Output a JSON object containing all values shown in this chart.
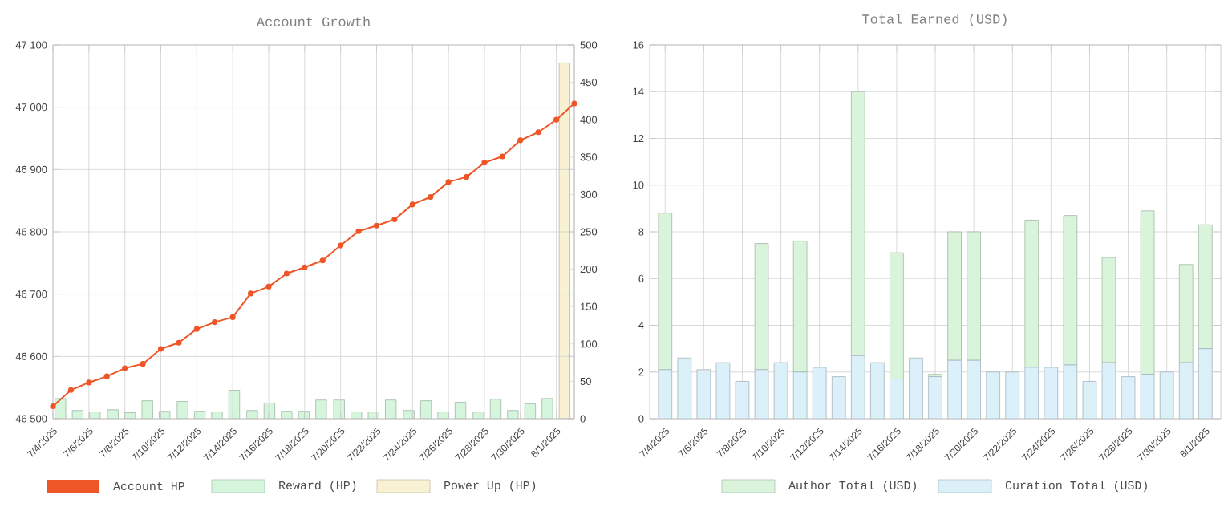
{
  "chart_data": [
    {
      "type": "line",
      "title": "Account Growth",
      "legend": "bottom",
      "grid": true,
      "xlim": [
        "2025-07-04",
        "2025-08-02"
      ],
      "xticks": [
        {
          "value": "2025-07-04",
          "label": "7/4/2025"
        },
        {
          "value": "2025-07-06",
          "label": "7/6/2025"
        },
        {
          "value": "2025-07-08",
          "label": "7/8/2025"
        },
        {
          "value": "2025-07-10",
          "label": "7/10/2025"
        },
        {
          "value": "2025-07-12",
          "label": "7/12/2025"
        },
        {
          "value": "2025-07-14",
          "label": "7/14/2025"
        },
        {
          "value": "2025-07-16",
          "label": "7/16/2025"
        },
        {
          "value": "2025-07-18",
          "label": "7/18/2025"
        },
        {
          "value": "2025-07-20",
          "label": "7/20/2025"
        },
        {
          "value": "2025-07-22",
          "label": "7/22/2025"
        },
        {
          "value": "2025-07-24",
          "label": "7/24/2025"
        },
        {
          "value": "2025-07-26",
          "label": "7/26/2025"
        },
        {
          "value": "2025-07-28",
          "label": "7/28/2025"
        },
        {
          "value": "2025-07-30",
          "label": "7/30/2025"
        },
        {
          "value": "2025-08-01",
          "label": "8/1/2025"
        }
      ],
      "ylim": [
        46500,
        47100
      ],
      "yticks": [
        {
          "value": 46500,
          "label": "46 500"
        },
        {
          "value": 46600,
          "label": "46 600"
        },
        {
          "value": 46700,
          "label": "46 700"
        },
        {
          "value": 46800,
          "label": "46 800"
        },
        {
          "value": 46900,
          "label": "46 900"
        },
        {
          "value": 47000,
          "label": "47 000"
        },
        {
          "value": 47100,
          "label": "47 100"
        }
      ],
      "y2lim": [
        0,
        500
      ],
      "y2ticks": [
        0,
        50,
        100,
        150,
        200,
        250,
        300,
        350,
        400,
        450,
        500
      ],
      "series": [
        {
          "name": "Account HP",
          "type": "line",
          "axis": "y",
          "color": "#ee5527",
          "marker": "circle",
          "x": [
            "2025-07-04",
            "2025-07-05",
            "2025-07-06",
            "2025-07-07",
            "2025-07-08",
            "2025-07-09",
            "2025-07-10",
            "2025-07-11",
            "2025-07-12",
            "2025-07-13",
            "2025-07-14",
            "2025-07-15",
            "2025-07-16",
            "2025-07-17",
            "2025-07-18",
            "2025-07-19",
            "2025-07-20",
            "2025-07-21",
            "2025-07-22",
            "2025-07-23",
            "2025-07-24",
            "2025-07-25",
            "2025-07-26",
            "2025-07-27",
            "2025-07-28",
            "2025-07-29",
            "2025-07-30",
            "2025-07-31",
            "2025-08-01",
            "2025-08-02"
          ],
          "values": [
            46520,
            46546,
            46558,
            46568,
            46581,
            46588,
            46612,
            46622,
            46644,
            46655,
            46663,
            46701,
            46712,
            46733,
            46743,
            46754,
            46778,
            46801,
            46810,
            46820,
            46844,
            46856,
            46880,
            46888,
            46911,
            46921,
            46947,
            46960,
            46980,
            47006
          ]
        },
        {
          "name": "Reward (HP)",
          "type": "bar",
          "axis": "y2",
          "color": "#d5f6dc",
          "x": [
            "2025-07-04T10:00",
            "2025-07-05T09:00",
            "2025-07-06T08:00",
            "2025-07-07T08:00",
            "2025-07-08T07:00",
            "2025-07-09T06:00",
            "2025-07-10T05:00",
            "2025-07-11T05:00",
            "2025-07-12T04:00",
            "2025-07-13T03:00",
            "2025-07-14T02:00",
            "2025-07-15T02:00",
            "2025-07-16T01:00",
            "2025-07-17T00:00",
            "2025-07-17T23:00",
            "2025-07-18T22:00",
            "2025-07-19T22:00",
            "2025-07-20T21:00",
            "2025-07-21T20:00",
            "2025-07-22T19:00",
            "2025-07-23T19:00",
            "2025-07-24T18:00",
            "2025-07-25T17:00",
            "2025-07-26T16:00",
            "2025-07-27T16:00",
            "2025-07-28T15:00",
            "2025-07-29T14:00",
            "2025-07-30T13:00",
            "2025-07-31T12:00"
          ],
          "values": [
            27,
            11,
            9,
            12,
            8,
            24,
            10,
            23,
            10,
            9,
            38,
            11,
            21,
            10,
            10,
            25,
            25,
            9,
            9,
            25,
            11,
            24,
            9,
            22,
            9,
            26,
            11,
            20,
            27
          ]
        },
        {
          "name": "Power Up (HP)",
          "type": "bar",
          "axis": "y2",
          "color": "#f8f2d2",
          "x": [
            "2025-08-01T11:00"
          ],
          "values": [
            476
          ]
        }
      ]
    },
    {
      "type": "bar",
      "title": "Total Earned (USD)",
      "legend": "bottom",
      "grid": true,
      "stacked": true,
      "categories": [
        "7/4/2025",
        null,
        "7/6/2025",
        null,
        "7/8/2025",
        null,
        "7/10/2025",
        null,
        "7/12/2025",
        null,
        "7/14/2025",
        null,
        "7/16/2025",
        null,
        "7/18/2025",
        null,
        "7/20/2025",
        null,
        "7/22/2025",
        null,
        "7/24/2025",
        null,
        "7/26/2025",
        null,
        "7/28/2025",
        null,
        "7/30/2025",
        null,
        "8/1/2025"
      ],
      "ylim": [
        0,
        16
      ],
      "yticks": [
        0,
        2,
        4,
        6,
        8,
        10,
        12,
        14,
        16
      ],
      "series": [
        {
          "name": "Curation Total (USD)",
          "color": "#dcf0fa",
          "values": [
            2.1,
            2.6,
            2.1,
            2.4,
            1.6,
            2.1,
            2.4,
            2.0,
            2.2,
            1.8,
            2.7,
            2.4,
            1.7,
            2.6,
            1.8,
            2.5,
            2.5,
            2.0,
            2.0,
            2.2,
            2.2,
            2.3,
            1.6,
            2.4,
            1.8,
            1.9,
            2.0,
            2.4,
            3.0
          ]
        },
        {
          "name": "Author Total (USD)",
          "color": "#daf4dc",
          "values": [
            6.7,
            0,
            0,
            0,
            0,
            5.4,
            0,
            5.6,
            0,
            0,
            11.3,
            0,
            5.4,
            0,
            0.1,
            5.5,
            5.5,
            0,
            0,
            6.3,
            0,
            6.4,
            0,
            4.5,
            0,
            7.0,
            0,
            4.2,
            5.3
          ]
        }
      ]
    }
  ]
}
